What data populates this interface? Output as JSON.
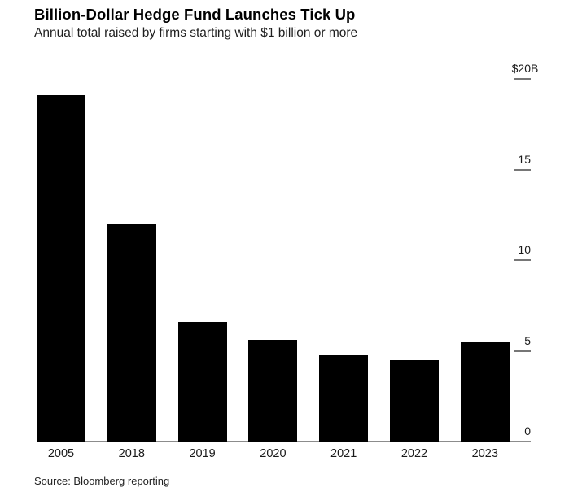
{
  "header": {
    "title": "Billion-Dollar Hedge Fund Launches Tick Up",
    "subtitle": "Annual total raised by firms starting with $1 billion or more"
  },
  "source": "Source: Bloomberg reporting",
  "colors": {
    "background": "#ffffff",
    "bar": "#000000",
    "title_text": "#000000",
    "body_text": "#1f1f1f",
    "tick_text": "#1a1a1a",
    "tick_line": "#767676",
    "axis_line": "#8c8c8c"
  },
  "chart_data": {
    "type": "bar",
    "title": "Billion-Dollar Hedge Fund Launches Tick Up",
    "subtitle": "Annual total raised by firms starting with $1 billion or more",
    "categories": [
      "2005",
      "2018",
      "2019",
      "2020",
      "2021",
      "2022",
      "2023"
    ],
    "values": [
      19.1,
      12.0,
      6.6,
      5.6,
      4.8,
      4.5,
      5.5
    ],
    "unit": "USD billions",
    "xlabel": "",
    "ylabel": "",
    "ylim": [
      0,
      20
    ],
    "yticks": [
      0,
      5,
      10,
      15,
      20
    ],
    "ytick_labels": [
      "0",
      "5",
      "10",
      "15",
      "$20B"
    ],
    "y_axis_side": "right",
    "grid": false,
    "legend": false,
    "bar_color": "#000000",
    "source": "Source: Bloomberg reporting"
  }
}
